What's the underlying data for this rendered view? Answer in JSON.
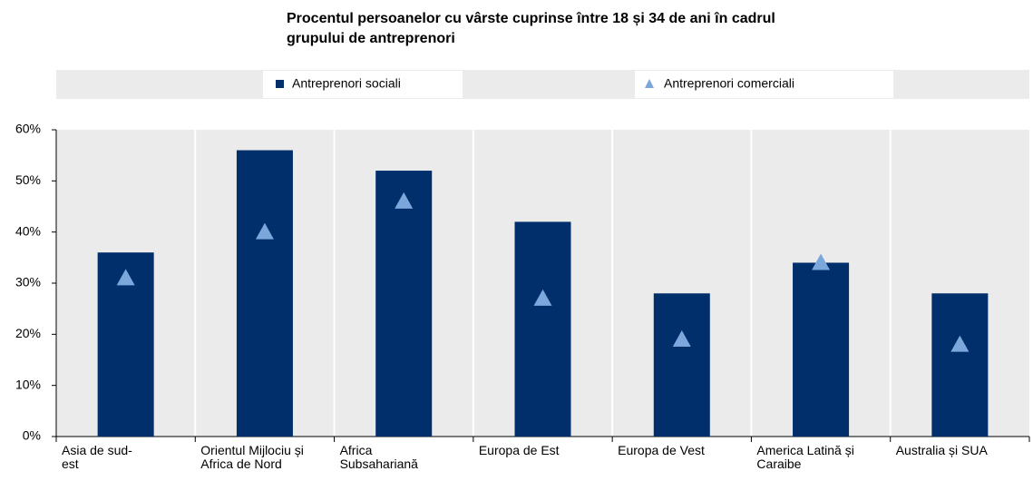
{
  "chart_data": {
    "type": "bar",
    "title": "Procentul persoanelor cu vârste cuprinse între 18 și 34 de ani în cadrul grupului de antreprenori",
    "categories": [
      "Asia de sud-est",
      "Orientul Mijlociu și Africa de Nord",
      "Africa Subsahariană",
      "Europa de Est",
      "Europa de Vest",
      "America Latină și Caraibe",
      "Australia și SUA"
    ],
    "series": [
      {
        "name": "Antreprenori sociali",
        "color": "#002f6c",
        "marker": "square",
        "values": [
          36,
          56,
          52,
          42,
          28,
          34,
          28
        ]
      },
      {
        "name": "Antreprenori comerciali",
        "color": "#7ba7dc",
        "marker": "triangle",
        "values": [
          31,
          40,
          46,
          27,
          19,
          34,
          18
        ]
      }
    ],
    "ylim": [
      0,
      60
    ],
    "yticks": [
      {
        "value": 0,
        "label": "0%"
      },
      {
        "value": 10,
        "label": "10%"
      },
      {
        "value": 20,
        "label": "20%"
      },
      {
        "value": 30,
        "label": "30%"
      },
      {
        "value": 40,
        "label": "40%"
      },
      {
        "value": 50,
        "label": "50%"
      },
      {
        "value": 60,
        "label": "60%"
      }
    ],
    "legend": "top"
  }
}
